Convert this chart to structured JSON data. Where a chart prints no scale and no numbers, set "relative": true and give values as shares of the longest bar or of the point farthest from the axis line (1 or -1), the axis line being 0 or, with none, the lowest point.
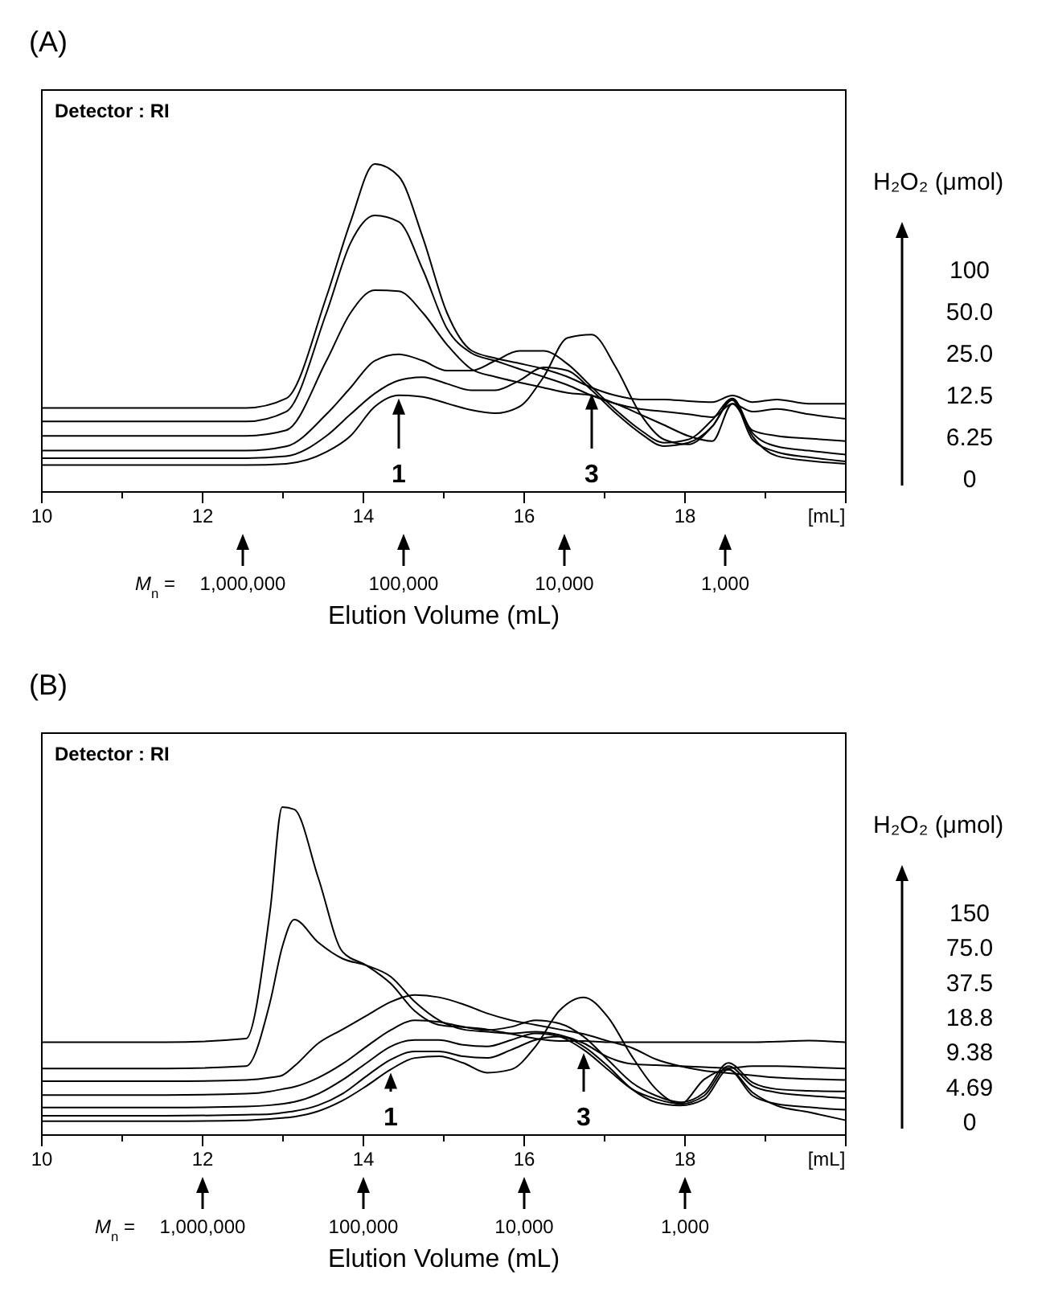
{
  "chart_data": [
    {
      "type": "line",
      "title": "(A)",
      "xlabel": "Elution Volume (mL)",
      "relative": true,
      "xlim": [
        10,
        20
      ],
      "xticks": [
        10,
        {
          "value": 11,
          "label": null
        },
        12,
        {
          "value": 13,
          "label": null
        },
        14,
        {
          "value": 15,
          "label": null
        },
        16,
        {
          "value": 17,
          "label": null
        },
        18,
        {
          "value": 19,
          "label": null
        },
        {
          "value": 20,
          "label": "[mL]"
        }
      ],
      "legend": "right",
      "legend_title": "H₂O₂ (μmol)",
      "x": [
        10,
        11.54,
        12.54,
        13.04,
        13.54,
        13.84,
        14.14,
        14.44,
        14.74,
        15.04,
        15.34,
        15.64,
        15.94,
        16.24,
        16.54,
        16.84,
        17.14,
        17.44,
        17.74,
        18.04,
        18.34,
        18.59,
        18.84,
        19.14,
        19.54,
        20
      ],
      "series": [
        {
          "name": "100",
          "color": "#000000",
          "values": [
            0.256,
            0.256,
            0.256,
            0.285,
            0.595,
            0.824,
            1.0,
            0.962,
            0.775,
            0.546,
            0.432,
            0.408,
            0.392,
            0.375,
            0.351,
            0.318,
            0.294,
            0.282,
            0.282,
            0.277,
            0.274,
            0.294,
            0.274,
            0.282,
            0.269,
            0.269
          ]
        },
        {
          "name": "50.0",
          "color": "#000000",
          "values": [
            0.215,
            0.215,
            0.215,
            0.245,
            0.546,
            0.759,
            0.843,
            0.824,
            0.677,
            0.498,
            0.424,
            0.4,
            0.375,
            0.351,
            0.326,
            0.294,
            0.269,
            0.253,
            0.245,
            0.237,
            0.228,
            0.269,
            0.245,
            0.253,
            0.237,
            0.223
          ]
        },
        {
          "name": "25.0",
          "color": "#000000",
          "values": [
            0.171,
            0.171,
            0.171,
            0.188,
            0.4,
            0.546,
            0.615,
            0.612,
            0.546,
            0.449,
            0.375,
            0.351,
            0.334,
            0.318,
            0.302,
            0.294,
            0.269,
            0.237,
            0.204,
            0.171,
            0.155,
            0.269,
            0.188,
            0.171,
            0.163,
            0.155
          ]
        },
        {
          "name": "12.5",
          "color": "#000000",
          "values": [
            0.126,
            0.126,
            0.126,
            0.139,
            0.237,
            0.318,
            0.4,
            0.42,
            0.4,
            0.37,
            0.37,
            0.4,
            0.43,
            0.43,
            0.39,
            0.32,
            0.25,
            0.19,
            0.15,
            0.16,
            0.22,
            0.285,
            0.18,
            0.139,
            0.126,
            0.114
          ]
        },
        {
          "name": "6.25",
          "color": "#000000",
          "values": [
            0.103,
            0.103,
            0.103,
            0.109,
            0.171,
            0.237,
            0.3,
            0.34,
            0.35,
            0.33,
            0.31,
            0.31,
            0.34,
            0.38,
            0.37,
            0.31,
            0.24,
            0.18,
            0.14,
            0.15,
            0.2,
            0.28,
            0.16,
            0.122,
            0.106,
            0.093
          ]
        },
        {
          "name": "0",
          "color": "#000000",
          "values": [
            0.082,
            0.082,
            0.082,
            0.086,
            0.122,
            0.171,
            0.26,
            0.295,
            0.29,
            0.27,
            0.25,
            0.24,
            0.26,
            0.35,
            0.47,
            0.48,
            0.38,
            0.24,
            0.16,
            0.145,
            0.2,
            0.285,
            0.17,
            0.11,
            0.095,
            0.086
          ]
        }
      ],
      "x2label": "M$_{n}$ =",
      "log": "x2",
      "x2lim": [
        17782800,
        177.8
      ],
      "x2ticks": [
        {
          "value": 1000000,
          "label": "1,000,000"
        },
        {
          "value": 100000,
          "label": "100,000"
        },
        {
          "value": 10000,
          "label": "10,000"
        },
        {
          "value": 1000,
          "label": "1,000"
        }
      ],
      "annotations": [
        "Detector : RI",
        {
          "text": "1",
          "x": 14.44,
          "y": 0.295
        },
        {
          "text": "3",
          "x": 16.84,
          "y": 0.31
        }
      ]
    },
    {
      "type": "line",
      "title": "(B)",
      "xlabel": "Elution Volume (mL)",
      "relative": true,
      "xlim": [
        10,
        20
      ],
      "xticks": [
        10,
        {
          "value": 11,
          "label": null
        },
        12,
        {
          "value": 13,
          "label": null
        },
        14,
        {
          "value": 15,
          "label": null
        },
        16,
        {
          "value": 17,
          "label": null
        },
        18,
        {
          "value": 19,
          "label": null
        },
        {
          "value": 20,
          "label": "[mL]"
        }
      ],
      "legend": "right",
      "legend_title": "H₂O₂ (μmol)",
      "x": [
        10,
        11.54,
        12.54,
        12.84,
        12.99,
        13.14,
        13.44,
        13.74,
        14.04,
        14.34,
        14.64,
        14.94,
        15.24,
        15.54,
        15.84,
        16.14,
        16.44,
        16.74,
        17.04,
        17.34,
        17.64,
        17.94,
        18.24,
        18.54,
        18.84,
        19.14,
        19.54,
        20
      ],
      "series": [
        {
          "name": "150",
          "color": "#000000",
          "values": [
            0.283,
            0.283,
            0.294,
            0.685,
            1.0,
            0.993,
            0.783,
            0.559,
            0.517,
            0.462,
            0.378,
            0.336,
            0.329,
            0.322,
            0.308,
            0.294,
            0.287,
            0.287,
            0.283,
            0.283,
            0.283,
            0.283,
            0.283,
            0.283,
            0.283,
            0.285,
            0.288,
            0.283
          ]
        },
        {
          "name": "75.0",
          "color": "#000000",
          "values": [
            0.203,
            0.203,
            0.21,
            0.406,
            0.573,
            0.657,
            0.587,
            0.538,
            0.517,
            0.483,
            0.406,
            0.35,
            0.322,
            0.315,
            0.31,
            0.315,
            0.305,
            0.28,
            0.238,
            0.217,
            0.213,
            0.21,
            0.207,
            0.204,
            0.21,
            0.21,
            0.207,
            0.203
          ]
        },
        {
          "name": "37.5",
          "color": "#000000",
          "values": [
            0.164,
            0.164,
            0.168,
            0.175,
            0.182,
            0.21,
            0.28,
            0.322,
            0.364,
            0.406,
            0.427,
            0.42,
            0.399,
            0.371,
            0.35,
            0.336,
            0.322,
            0.308,
            0.287,
            0.266,
            0.231,
            0.21,
            0.196,
            0.189,
            0.182,
            0.175,
            0.171,
            0.168
          ]
        },
        {
          "name": "18.8",
          "color": "#000000",
          "values": [
            0.122,
            0.122,
            0.126,
            0.133,
            0.14,
            0.147,
            0.175,
            0.217,
            0.27,
            0.32,
            0.35,
            0.345,
            0.33,
            0.32,
            0.33,
            0.35,
            0.34,
            0.3,
            0.23,
            0.16,
            0.12,
            0.1,
            0.13,
            0.22,
            0.16,
            0.14,
            0.135,
            0.133
          ]
        },
        {
          "name": "9.38",
          "color": "#000000",
          "values": [
            0.084,
            0.084,
            0.087,
            0.091,
            0.095,
            0.101,
            0.126,
            0.168,
            0.22,
            0.27,
            0.29,
            0.29,
            0.275,
            0.27,
            0.29,
            0.31,
            0.3,
            0.26,
            0.2,
            0.14,
            0.11,
            0.095,
            0.12,
            0.21,
            0.15,
            0.13,
            0.12,
            0.112
          ]
        },
        {
          "name": "4.69",
          "color": "#000000",
          "values": [
            0.059,
            0.059,
            0.062,
            0.064,
            0.068,
            0.073,
            0.091,
            0.126,
            0.18,
            0.23,
            0.255,
            0.255,
            0.24,
            0.235,
            0.26,
            0.29,
            0.3,
            0.27,
            0.21,
            0.14,
            0.1,
            0.09,
            0.11,
            0.2,
            0.12,
            0.095,
            0.085,
            0.077
          ]
        },
        {
          "name": "0",
          "color": "#000000",
          "values": [
            0.042,
            0.042,
            0.045,
            0.049,
            0.052,
            0.056,
            0.073,
            0.105,
            0.15,
            0.2,
            0.235,
            0.24,
            0.22,
            0.19,
            0.2,
            0.27,
            0.38,
            0.42,
            0.36,
            0.24,
            0.14,
            0.095,
            0.17,
            0.2,
            0.13,
            0.09,
            0.07,
            0.045
          ]
        }
      ],
      "x2label": "M$_{n}$ =",
      "log": "x2",
      "x2lim": [
        10000000,
        100
      ],
      "x2ticks": [
        {
          "value": 1000000,
          "label": "1,000,000"
        },
        {
          "value": 100000,
          "label": "100,000"
        },
        {
          "value": 10000,
          "label": "10,000"
        },
        {
          "value": 1000,
          "label": "1,000"
        }
      ],
      "annotations": [
        "Detector : RI",
        {
          "text": "1",
          "x": 14.34,
          "y": 0.2
        },
        {
          "text": "3",
          "x": 16.74,
          "y": 0.26
        }
      ]
    }
  ]
}
